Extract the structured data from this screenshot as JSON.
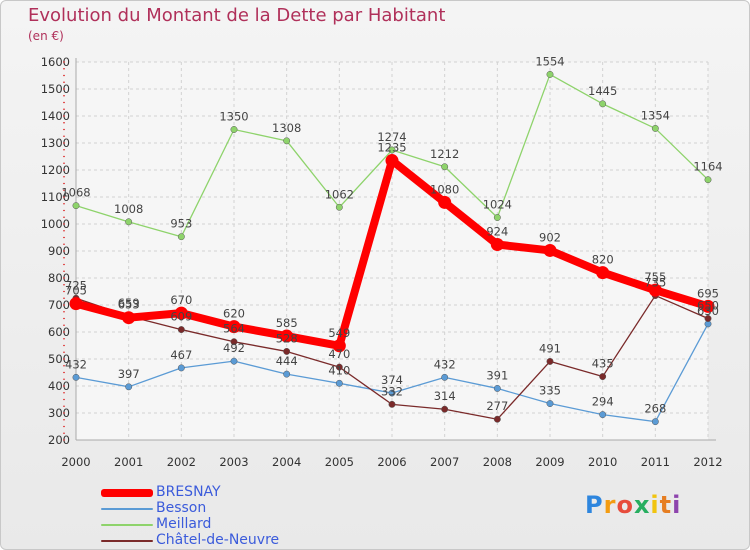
{
  "title": "Evolution du Montant de la Dette par Habitant",
  "subtitle": "(en €)",
  "logo": {
    "text": "Proxiti",
    "colors": [
      "#2e86de",
      "#f39c12",
      "#e74c3c",
      "#27ae60",
      "#f1c40f",
      "#e67e22",
      "#8e44ad"
    ]
  },
  "chart_data": {
    "type": "line",
    "x": [
      "2000",
      "2001",
      "2002",
      "2003",
      "2004",
      "2005",
      "2006",
      "2007",
      "2008",
      "2009",
      "2010",
      "2011",
      "2012"
    ],
    "ylim": [
      200,
      1600
    ],
    "yticks": [
      200,
      300,
      400,
      500,
      600,
      700,
      800,
      900,
      1000,
      1100,
      1200,
      1300,
      1400,
      1500,
      1600
    ],
    "grid": true,
    "legend_position": "bottom-left",
    "series": [
      {
        "name": "BRESNAY",
        "color": "#ff0000",
        "values": [
          705,
          653,
          670,
          620,
          585,
          549,
          1235,
          1080,
          924,
          902,
          820,
          755,
          695
        ]
      },
      {
        "name": "Besson",
        "color": "#5b9bd5",
        "values": [
          432,
          397,
          467,
          492,
          444,
          410,
          374,
          432,
          391,
          335,
          294,
          268,
          630
        ]
      },
      {
        "name": "Meillard",
        "color": "#8ed36b",
        "values": [
          1068,
          1008,
          953,
          1350,
          1308,
          1062,
          1274,
          1212,
          1024,
          1554,
          1445,
          1354,
          1164
        ]
      },
      {
        "name": "Châtel-de-Neuvre",
        "color": "#7a2a2a",
        "values": [
          725,
          659,
          609,
          564,
          528,
          470,
          332,
          314,
          277,
          491,
          435,
          735,
          650
        ]
      }
    ],
    "data_labels": {
      "BRESNAY": [
        "705",
        "653",
        "670",
        "620",
        "585",
        "549",
        "1235",
        "1080",
        "924",
        "902",
        "820",
        "755",
        "695"
      ],
      "Besson": [
        "432",
        "397",
        "467",
        "492",
        "444",
        "410",
        "374",
        "432",
        "391",
        "335",
        "294",
        "268",
        "630"
      ],
      "Meillard": [
        "1068",
        "1008",
        "953",
        "1350",
        "1308",
        "1062",
        "1274",
        "1212",
        "1024",
        "1554",
        "1445",
        "1354",
        "1164"
      ],
      "Châtel-de-Neuvre": [
        "725",
        "659",
        "609",
        "564",
        "528",
        "470",
        "332",
        "314",
        "277",
        "491",
        "435",
        "735",
        "650"
      ]
    }
  }
}
